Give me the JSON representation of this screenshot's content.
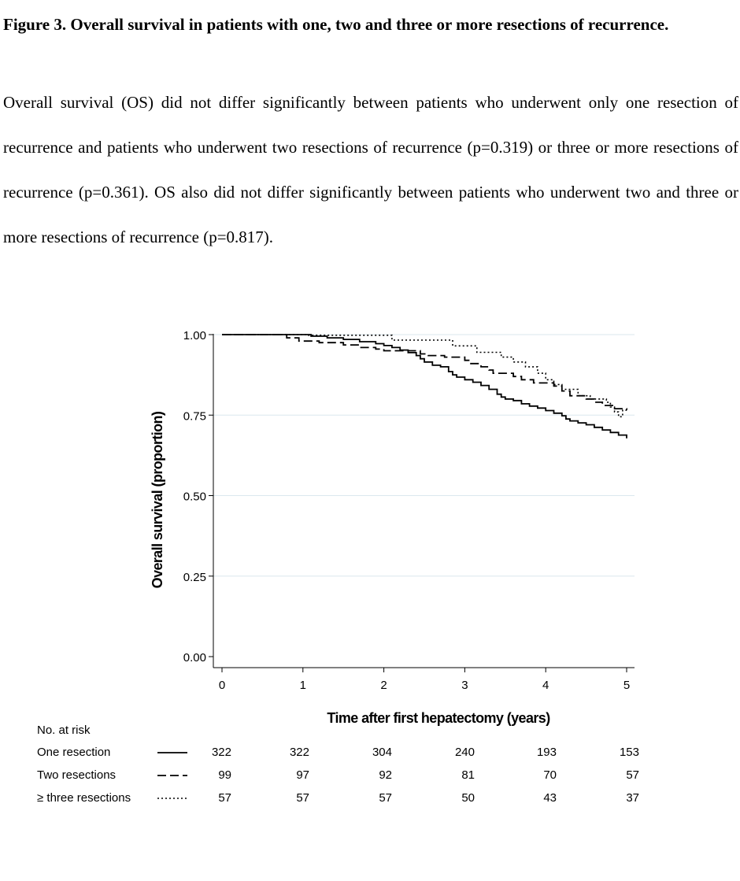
{
  "caption": {
    "title": "Figure 3. Overall survival in patients with one, two and three or more resections of recurrence.",
    "body": "Overall survival (OS) did not differ significantly between patients who underwent only one resection of recurrence and patients who underwent two resections of recurrence (p=0.319) or three or more resections of recurrence (p=0.361). OS also did not differ significantly between patients who underwent two and three or more resections of recurrence (p=0.817)."
  },
  "chart_data": {
    "type": "line",
    "subtype": "kaplan-meier step",
    "xlabel": "Time after first hepatectomy (years)",
    "ylabel": "Overall survival (proportion)",
    "xlim": [
      0,
      5
    ],
    "ylim": [
      0,
      1
    ],
    "xticks": [
      "0",
      "1",
      "2",
      "3",
      "4",
      "5"
    ],
    "yticks": [
      "0.00",
      "0.25",
      "0.50",
      "0.75",
      "1.00"
    ],
    "grid": "horizontal",
    "series": [
      {
        "name": "One resection",
        "dash": "solid",
        "points": [
          [
            0,
            1.0
          ],
          [
            1.0,
            1.0
          ],
          [
            1.1,
            0.995
          ],
          [
            1.3,
            0.99
          ],
          [
            1.5,
            0.985
          ],
          [
            1.7,
            0.978
          ],
          [
            1.9,
            0.972
          ],
          [
            2.0,
            0.966
          ],
          [
            2.1,
            0.96
          ],
          [
            2.2,
            0.952
          ],
          [
            2.3,
            0.944
          ],
          [
            2.4,
            0.935
          ],
          [
            2.45,
            0.925
          ],
          [
            2.5,
            0.915
          ],
          [
            2.6,
            0.905
          ],
          [
            2.7,
            0.9
          ],
          [
            2.8,
            0.885
          ],
          [
            2.85,
            0.875
          ],
          [
            2.9,
            0.868
          ],
          [
            3.0,
            0.86
          ],
          [
            3.1,
            0.852
          ],
          [
            3.2,
            0.842
          ],
          [
            3.3,
            0.83
          ],
          [
            3.4,
            0.815
          ],
          [
            3.45,
            0.806
          ],
          [
            3.5,
            0.8
          ],
          [
            3.6,
            0.795
          ],
          [
            3.7,
            0.785
          ],
          [
            3.8,
            0.778
          ],
          [
            3.9,
            0.772
          ],
          [
            4.0,
            0.764
          ],
          [
            4.1,
            0.756
          ],
          [
            4.2,
            0.748
          ],
          [
            4.25,
            0.738
          ],
          [
            4.3,
            0.732
          ],
          [
            4.4,
            0.726
          ],
          [
            4.5,
            0.72
          ],
          [
            4.6,
            0.712
          ],
          [
            4.7,
            0.704
          ],
          [
            4.8,
            0.696
          ],
          [
            4.9,
            0.688
          ],
          [
            5.0,
            0.678
          ]
        ]
      },
      {
        "name": "Two resections",
        "dash": "long-dash",
        "points": [
          [
            0,
            1.0
          ],
          [
            0.75,
            1.0
          ],
          [
            0.8,
            0.99
          ],
          [
            0.95,
            0.98
          ],
          [
            1.2,
            0.975
          ],
          [
            1.5,
            0.968
          ],
          [
            1.7,
            0.96
          ],
          [
            1.9,
            0.955
          ],
          [
            2.0,
            0.95
          ],
          [
            2.4,
            0.95
          ],
          [
            2.45,
            0.94
          ],
          [
            2.55,
            0.935
          ],
          [
            2.75,
            0.93
          ],
          [
            3.0,
            0.92
          ],
          [
            3.05,
            0.91
          ],
          [
            3.2,
            0.9
          ],
          [
            3.3,
            0.89
          ],
          [
            3.35,
            0.88
          ],
          [
            3.6,
            0.87
          ],
          [
            3.7,
            0.86
          ],
          [
            3.85,
            0.85
          ],
          [
            4.0,
            0.85
          ],
          [
            4.1,
            0.84
          ],
          [
            4.2,
            0.825
          ],
          [
            4.3,
            0.81
          ],
          [
            4.5,
            0.8
          ],
          [
            4.6,
            0.79
          ],
          [
            4.7,
            0.78
          ],
          [
            4.85,
            0.77
          ],
          [
            5.0,
            0.765
          ]
        ]
      },
      {
        "name": "≥ three resections",
        "dash": "dotted",
        "points": [
          [
            0,
            1.0
          ],
          [
            1.0,
            1.0
          ],
          [
            1.05,
            0.998
          ],
          [
            1.7,
            0.998
          ],
          [
            2.05,
            0.998
          ],
          [
            2.1,
            0.983
          ],
          [
            2.8,
            0.983
          ],
          [
            2.85,
            0.965
          ],
          [
            3.1,
            0.965
          ],
          [
            3.15,
            0.945
          ],
          [
            3.4,
            0.945
          ],
          [
            3.45,
            0.93
          ],
          [
            3.6,
            0.915
          ],
          [
            3.75,
            0.9
          ],
          [
            3.9,
            0.88
          ],
          [
            4.0,
            0.86
          ],
          [
            4.1,
            0.845
          ],
          [
            4.2,
            0.83
          ],
          [
            4.4,
            0.81
          ],
          [
            4.55,
            0.8
          ],
          [
            4.75,
            0.79
          ],
          [
            4.8,
            0.775
          ],
          [
            4.85,
            0.76
          ],
          [
            4.9,
            0.745
          ],
          [
            4.95,
            0.765
          ],
          [
            5.0,
            0.765
          ]
        ]
      }
    ],
    "risk_table": {
      "title": "No. at risk",
      "times": [
        0,
        1,
        2,
        3,
        4,
        5
      ],
      "rows": [
        {
          "label": "One resection",
          "dash": "solid",
          "counts": [
            "322",
            "322",
            "304",
            "240",
            "193",
            "153"
          ]
        },
        {
          "label": "Two resections",
          "dash": "long-dash",
          "counts": [
            "99",
            "97",
            "92",
            "81",
            "70",
            "57"
          ]
        },
        {
          "label": "≥ three resections",
          "dash": "dotted",
          "counts": [
            "57",
            "57",
            "57",
            "50",
            "43",
            "37"
          ]
        }
      ]
    }
  }
}
